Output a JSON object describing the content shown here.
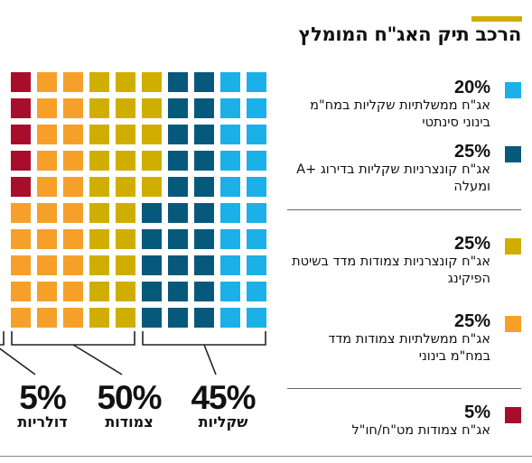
{
  "header": {
    "title": "הרכב תיק האג\"ח המומלץ",
    "accent_color": "#cfae00"
  },
  "chart_data": {
    "type": "waffle",
    "grid": {
      "rows": 10,
      "columns": 10
    },
    "fill_order": "columns right-to-left, bottom-to-top",
    "series": [
      {
        "value": 20,
        "color": "#1cb0e8",
        "pct_label": "20%",
        "label": "אג\"ח ממשלתיות שקליות במח\"מ בינוני סינתטי"
      },
      {
        "value": 25,
        "color": "#07597c",
        "pct_label": "25%",
        "label": "אג\"ח קונצרניות שקליות בדירוג +A ומעלה"
      },
      {
        "value": 25,
        "color": "#cfae00",
        "pct_label": "25%",
        "label": "אג\"ח קונצרניות צמודות מדד בשיטת הפיקינג"
      },
      {
        "value": 25,
        "color": "#f6a02a",
        "pct_label": "25%",
        "label": "אג\"ח ממשלתיות צמודות מדד במח\"מ בינוני"
      },
      {
        "value": 5,
        "color": "#a80d2b",
        "pct_label": "5%",
        "label": "אג\"ח צמודות מט\"ח/חו\"ל"
      }
    ],
    "groups": [
      {
        "value": 45,
        "pct_label": "45%",
        "label": "שקליות",
        "series": [
          0,
          1
        ]
      },
      {
        "value": 50,
        "pct_label": "50%",
        "label": "צמודות",
        "series": [
          2,
          3
        ]
      },
      {
        "value": 5,
        "pct_label": "5%",
        "label": "דולריות",
        "series": [
          4
        ]
      }
    ]
  }
}
